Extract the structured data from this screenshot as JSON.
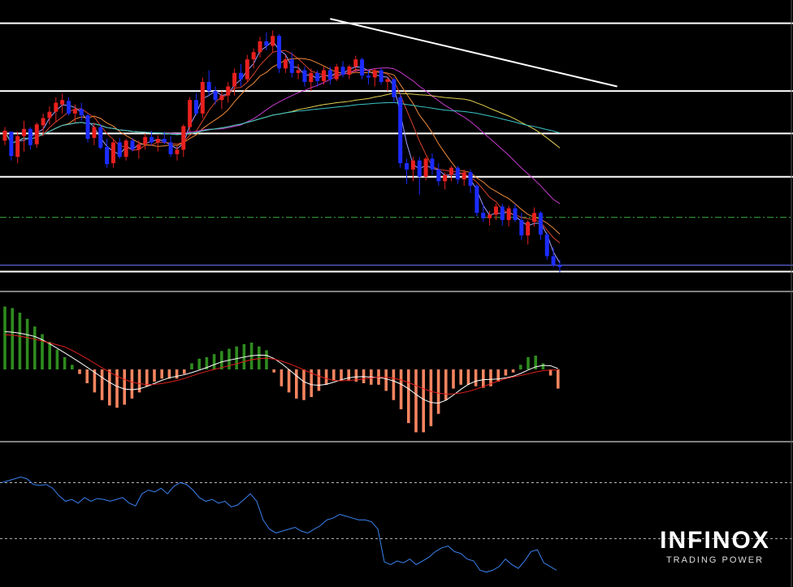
{
  "chart_data": [
    {
      "type": "candlestick",
      "panel": "price",
      "colors": {
        "up": "#e8201e",
        "down": "#1c2cff",
        "background": "#000000"
      },
      "candles": [
        [
          130,
          145,
          125,
          141
        ],
        [
          140,
          138,
          108,
          113
        ],
        [
          112,
          140,
          105,
          135
        ],
        [
          135,
          152,
          118,
          143
        ],
        [
          143,
          145,
          120,
          125
        ],
        [
          126,
          150,
          122,
          148
        ],
        [
          147,
          160,
          135,
          155
        ],
        [
          155,
          168,
          148,
          162
        ],
        [
          162,
          178,
          150,
          172
        ],
        [
          170,
          182,
          160,
          175
        ],
        [
          174,
          178,
          158,
          160
        ],
        [
          160,
          170,
          150,
          165
        ],
        [
          165,
          172,
          152,
          158
        ],
        [
          158,
          160,
          128,
          132
        ],
        [
          133,
          150,
          125,
          145
        ],
        [
          145,
          148,
          120,
          122
        ],
        [
          123,
          132,
          100,
          104
        ],
        [
          105,
          132,
          100,
          128
        ],
        [
          128,
          133,
          110,
          112
        ],
        [
          112,
          132,
          108,
          130
        ],
        [
          130,
          133,
          118,
          120
        ],
        [
          120,
          130,
          110,
          126
        ],
        [
          126,
          138,
          120,
          134
        ],
        [
          134,
          141,
          125,
          128
        ],
        [
          128,
          136,
          118,
          132
        ],
        [
          132,
          140,
          126,
          128
        ],
        [
          128,
          135,
          112,
          115
        ],
        [
          115,
          124,
          108,
          120
        ],
        [
          120,
          148,
          112,
          146
        ],
        [
          145,
          178,
          140,
          175
        ],
        [
          175,
          182,
          158,
          160
        ],
        [
          160,
          200,
          155,
          195
        ],
        [
          195,
          208,
          180,
          185
        ],
        [
          185,
          190,
          170,
          175
        ],
        [
          175,
          185,
          165,
          180
        ],
        [
          180,
          195,
          172,
          190
        ],
        [
          190,
          210,
          180,
          205
        ],
        [
          205,
          215,
          190,
          198
        ],
        [
          198,
          225,
          195,
          220
        ],
        [
          220,
          232,
          210,
          228
        ],
        [
          228,
          245,
          222,
          240
        ],
        [
          240,
          250,
          230,
          235
        ],
        [
          235,
          252,
          228,
          246
        ],
        [
          246,
          248,
          205,
          210
        ],
        [
          210,
          225,
          205,
          220
        ],
        [
          220,
          228,
          200,
          205
        ],
        [
          205,
          215,
          198,
          208
        ],
        [
          208,
          212,
          190,
          195
        ],
        [
          195,
          210,
          185,
          205
        ],
        [
          205,
          208,
          190,
          196
        ],
        [
          196,
          212,
          192,
          208
        ],
        [
          208,
          212,
          192,
          198
        ],
        [
          198,
          215,
          196,
          212
        ],
        [
          212,
          218,
          200,
          203
        ],
        [
          203,
          214,
          198,
          212
        ],
        [
          212,
          224,
          205,
          220
        ],
        [
          220,
          222,
          198,
          202
        ],
        [
          202,
          208,
          192,
          200
        ],
        [
          200,
          210,
          190,
          208
        ],
        [
          208,
          210,
          192,
          195
        ],
        [
          195,
          200,
          185,
          198
        ],
        [
          198,
          200,
          172,
          178
        ],
        [
          178,
          182,
          100,
          105
        ],
        [
          105,
          110,
          82,
          98
        ],
        [
          98,
          112,
          85,
          108
        ],
        [
          108,
          112,
          70,
          90
        ],
        [
          90,
          112,
          86,
          110
        ],
        [
          110,
          116,
          92,
          98
        ],
        [
          98,
          105,
          80,
          85
        ],
        [
          85,
          95,
          76,
          92
        ],
        [
          92,
          102,
          85,
          100
        ],
        [
          100,
          102,
          82,
          87
        ],
        [
          87,
          98,
          80,
          95
        ],
        [
          95,
          98,
          72,
          80
        ],
        [
          80,
          82,
          46,
          50
        ],
        [
          50,
          60,
          40,
          44
        ],
        [
          44,
          52,
          36,
          48
        ],
        [
          48,
          60,
          42,
          57
        ],
        [
          57,
          60,
          36,
          42
        ],
        [
          42,
          58,
          35,
          55
        ],
        [
          55,
          60,
          40,
          42
        ],
        [
          42,
          50,
          20,
          25
        ],
        [
          25,
          42,
          15,
          40
        ],
        [
          40,
          56,
          35,
          50
        ],
        [
          50,
          52,
          20,
          26
        ],
        [
          26,
          28,
          -2,
          2
        ],
        [
          2,
          12,
          -10,
          -8
        ],
        [
          -8,
          -2,
          -16,
          -10
        ]
      ],
      "moving_averages": [
        {
          "color": "#a0a0ff"
        },
        {
          "color": "#d9452b"
        },
        {
          "color": "#f08a3a"
        },
        {
          "color": "#c83ad0"
        },
        {
          "color": "#e4d050"
        },
        {
          "color": "#3cc6c8"
        }
      ],
      "horizontal_lines": [
        {
          "y": 260,
          "color": "#ffffff"
        },
        {
          "y": 185,
          "color": "#ffffff"
        },
        {
          "y": 138,
          "color": "#ffffff"
        },
        {
          "y": 90,
          "color": "#ffffff"
        },
        {
          "y": 45,
          "color": "#3cb043",
          "style": "dash-dot"
        },
        {
          "y": -8,
          "color": "#6878ff"
        },
        {
          "y": -15,
          "color": "#ffffff"
        }
      ],
      "trendlines": [
        {
          "from": [
            51,
            265
          ],
          "to": [
            96,
            190
          ],
          "color": "#ffffff"
        }
      ]
    },
    {
      "type": "histogram",
      "panel": "macd",
      "colors": {
        "positive": "#2e8b1e",
        "negative": "#f4845f",
        "signal_white": "#ffffff",
        "signal_red": "#e0201c"
      },
      "values": [
        0.82,
        0.8,
        0.74,
        0.66,
        0.56,
        0.46,
        0.36,
        0.26,
        0.16,
        0.06,
        -0.06,
        -0.18,
        -0.3,
        -0.4,
        -0.47,
        -0.5,
        -0.46,
        -0.38,
        -0.3,
        -0.22,
        -0.16,
        -0.12,
        -0.12,
        -0.12,
        -0.06,
        0.08,
        0.14,
        0.16,
        0.2,
        0.24,
        0.27,
        0.3,
        0.33,
        0.35,
        0.3,
        0.25,
        -0.04,
        -0.22,
        -0.3,
        -0.38,
        -0.4,
        -0.36,
        -0.28,
        -0.2,
        -0.15,
        -0.14,
        -0.15,
        -0.16,
        -0.18,
        -0.2,
        -0.2,
        -0.28,
        -0.4,
        -0.52,
        -0.7,
        -0.82,
        -0.82,
        -0.74,
        -0.58,
        -0.4,
        -0.25,
        -0.2,
        -0.2,
        -0.22,
        -0.24,
        -0.22,
        -0.16,
        -0.08,
        -0.04,
        0.06,
        0.16,
        0.18,
        0.08,
        -0.08,
        -0.25
      ],
      "ylim": [
        -0.9,
        0.9
      ]
    },
    {
      "type": "line",
      "panel": "oscillator",
      "colors": {
        "line": "#3a82f0",
        "levels": "#bbbbbb"
      },
      "values": [
        80,
        82,
        84,
        86,
        84,
        78,
        77,
        78,
        74,
        66,
        60,
        62,
        58,
        64,
        60,
        63,
        62,
        60,
        62,
        64,
        58,
        55,
        68,
        72,
        70,
        74,
        68,
        76,
        80,
        78,
        72,
        64,
        60,
        62,
        58,
        60,
        54,
        56,
        62,
        68,
        60,
        40,
        30,
        26,
        28,
        30,
        32,
        28,
        26,
        30,
        34,
        40,
        42,
        46,
        44,
        42,
        40,
        40,
        38,
        30,
        -5,
        -8,
        -4,
        -6,
        -2,
        -8,
        -4,
        0,
        6,
        10,
        12,
        6,
        4,
        -2,
        -4,
        -14,
        -16,
        -14,
        -10,
        -2,
        -8,
        -12,
        -4,
        6,
        8,
        -6,
        -10,
        -14
      ],
      "levels": [
        80,
        20
      ],
      "ylim": [
        -25,
        110
      ]
    }
  ],
  "branding": {
    "logo_text": "INFINOX",
    "tagline": "TRADING POWER"
  }
}
